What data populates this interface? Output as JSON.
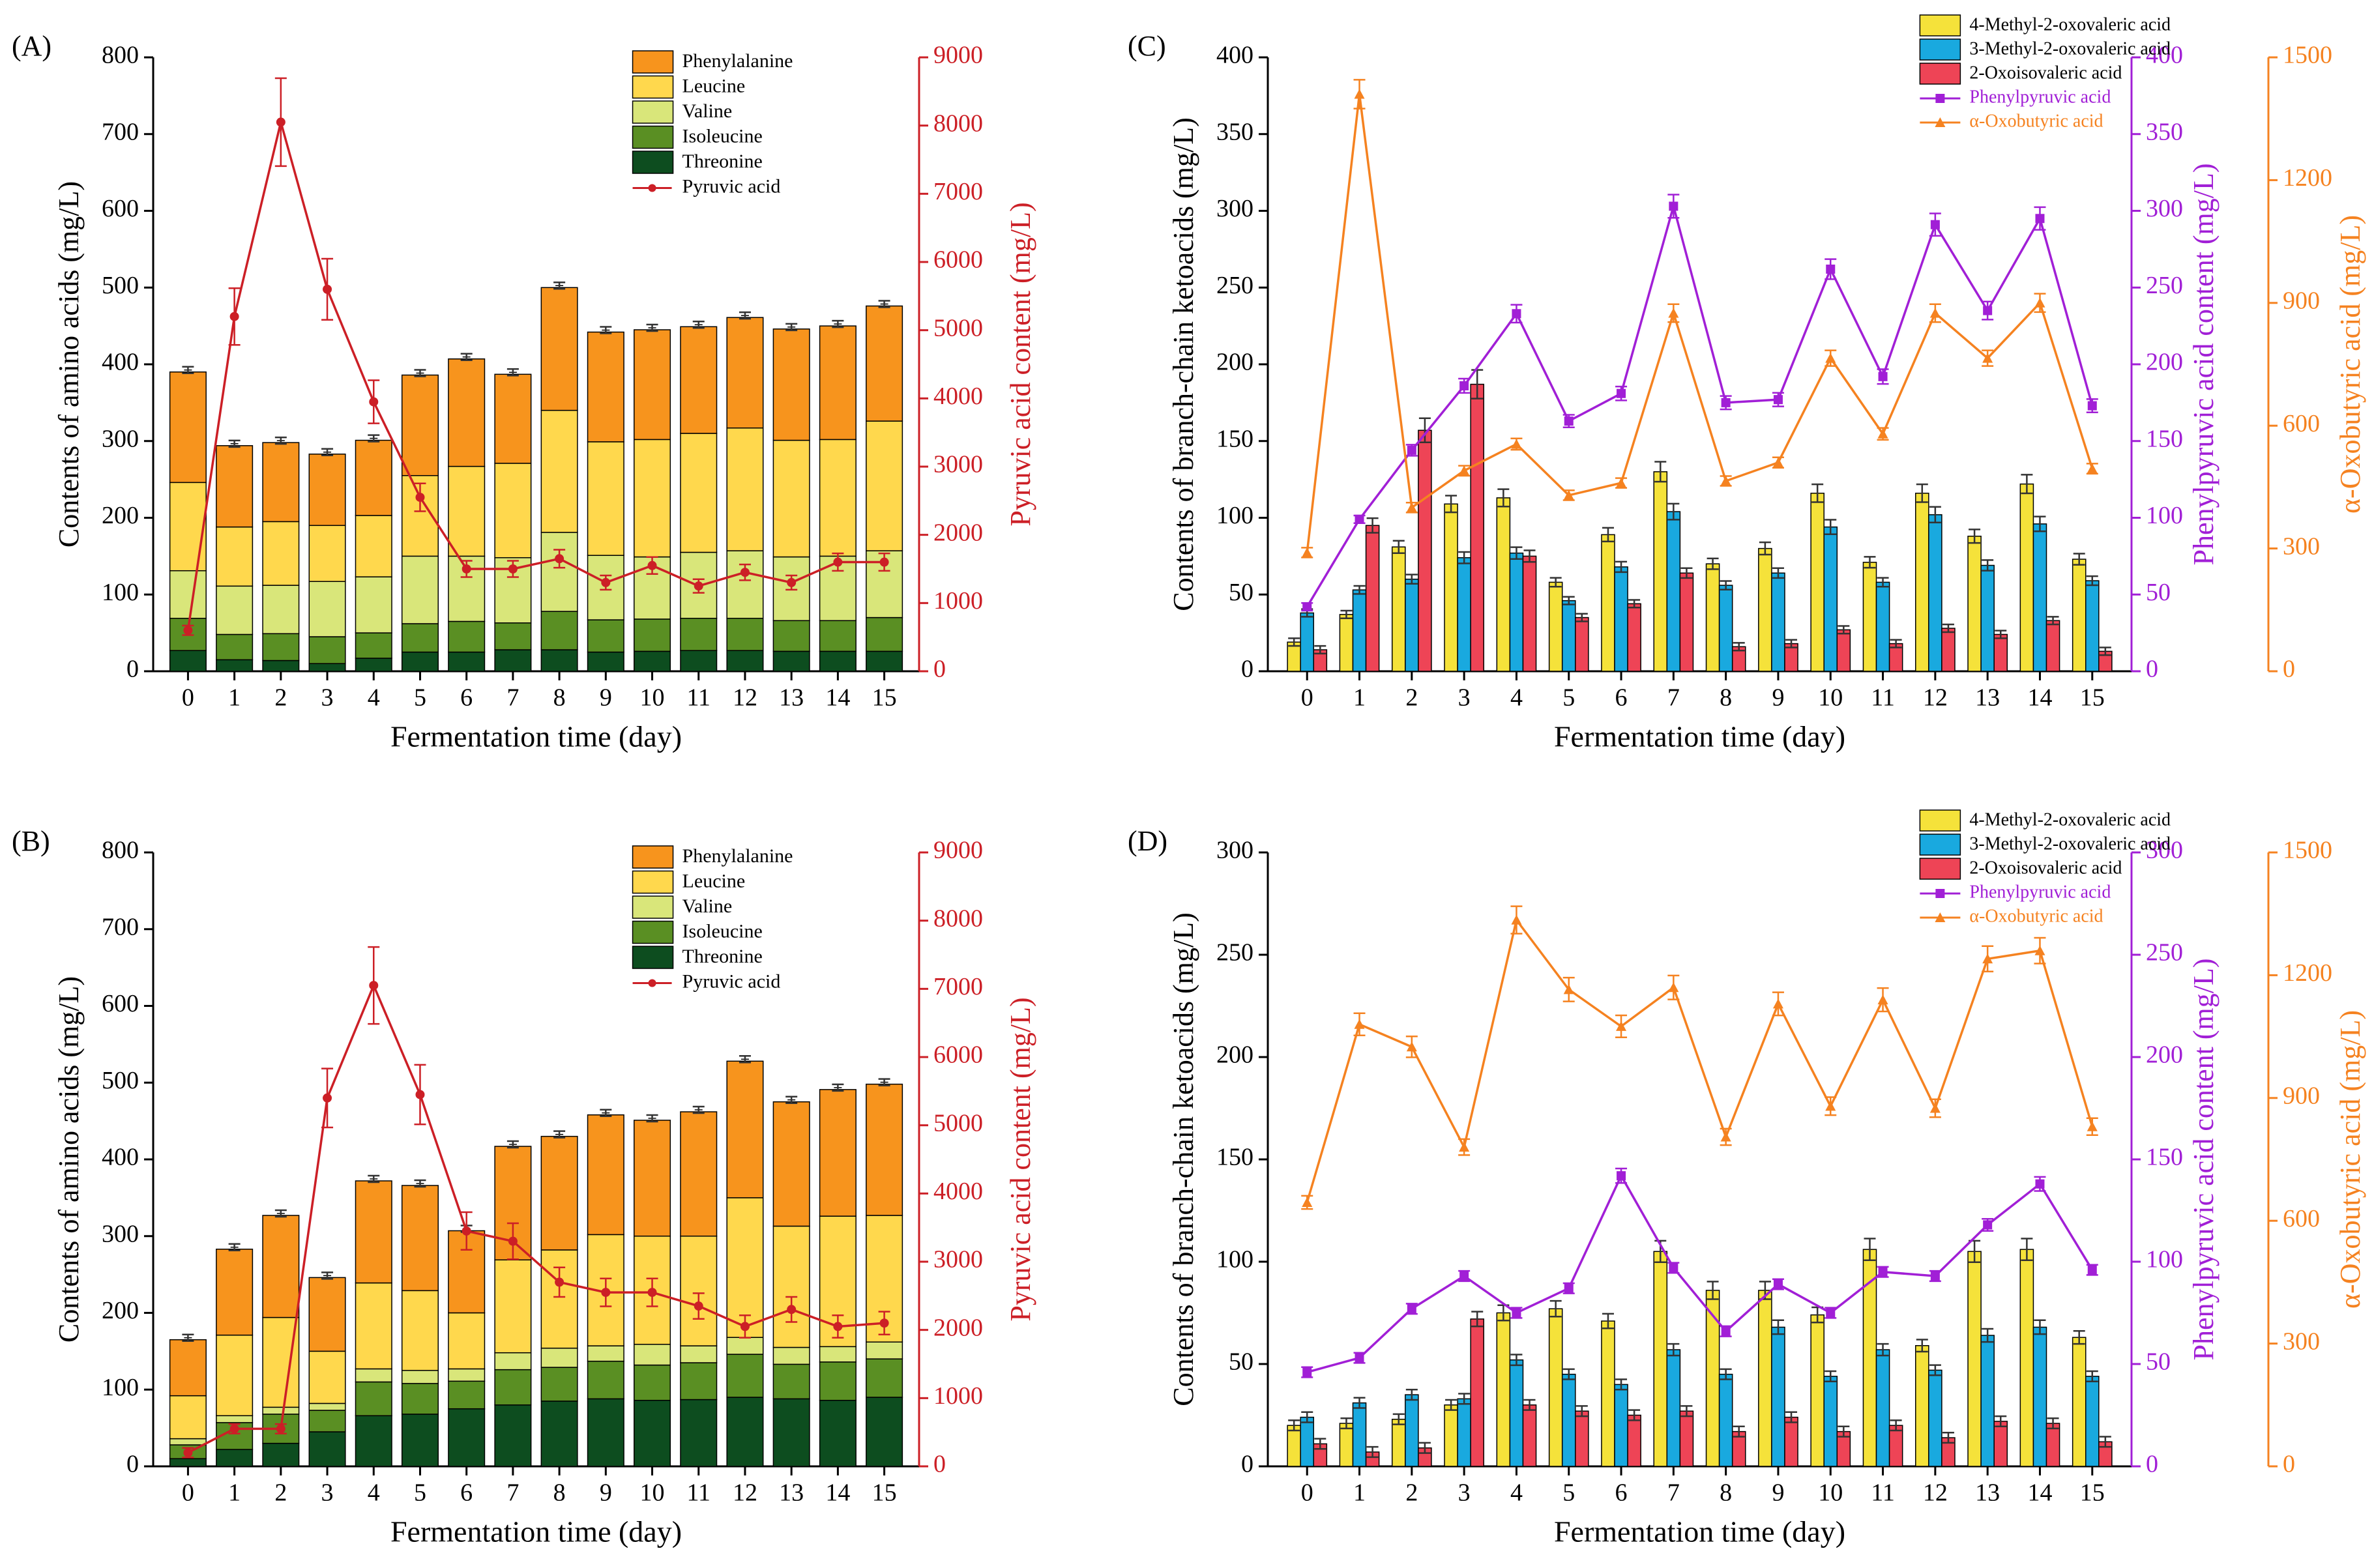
{
  "colors": {
    "phenylalanine": "#f7941d",
    "leucine": "#ffd84d",
    "valine": "#d9e67a",
    "isoleucine": "#5a8f23",
    "threonine": "#0d4d1f",
    "pyruvic": "#cc1f26",
    "methyl4": "#f5e23a",
    "methyl3": "#19a9df",
    "oxoiso": "#ee4456",
    "phenylpyruvic": "#a11fd6",
    "oxobutyric": "#f58220"
  },
  "chart_data": [
    {
      "panel": "(A)",
      "type": "bar",
      "stacked": true,
      "xlabel": "Fermentation time (day)",
      "ylabel": "Contents of amino acids (mg/L)",
      "ylim": [
        0,
        800
      ],
      "yticks": [
        "0",
        "100",
        "200",
        "300",
        "400",
        "500",
        "600",
        "700",
        "800"
      ],
      "y2label": "Pyruvic acid content (mg/L)",
      "y2lim": [
        0,
        9000
      ],
      "y2ticks": [
        "0",
        "1000",
        "2000",
        "3000",
        "4000",
        "5000",
        "6000",
        "7000",
        "8000",
        "9000"
      ],
      "categories": [
        "0",
        "1",
        "2",
        "3",
        "4",
        "5",
        "6",
        "7",
        "8",
        "9",
        "10",
        "11",
        "12",
        "13",
        "14",
        "15"
      ],
      "series": [
        {
          "name": "Threonine",
          "values": [
            27,
            15,
            14,
            10,
            17,
            25,
            25,
            28,
            28,
            25,
            26,
            27,
            27,
            26,
            26,
            26
          ]
        },
        {
          "name": "Isoleucine",
          "values": [
            42,
            33,
            35,
            35,
            33,
            37,
            40,
            35,
            50,
            42,
            42,
            42,
            42,
            40,
            40,
            44
          ]
        },
        {
          "name": "Valine",
          "values": [
            62,
            63,
            63,
            72,
            73,
            88,
            85,
            85,
            103,
            84,
            81,
            86,
            88,
            83,
            84,
            87
          ]
        },
        {
          "name": "Leucine",
          "values": [
            115,
            77,
            83,
            73,
            80,
            105,
            117,
            123,
            159,
            148,
            153,
            155,
            160,
            152,
            152,
            169
          ]
        },
        {
          "name": "Phenylalanine",
          "values": [
            144,
            106,
            103,
            93,
            98,
            131,
            140,
            116,
            160,
            143,
            143,
            139,
            144,
            145,
            148,
            150
          ]
        }
      ],
      "line": {
        "name": "Pyruvic acid",
        "axis": "right",
        "values": [
          600,
          5200,
          8050,
          5600,
          3950,
          2550,
          1500,
          1500,
          1650,
          1300,
          1550,
          1250,
          1450,
          1300,
          1600,
          1600
        ]
      },
      "legend": [
        "Phenylalanine",
        "Leucine",
        "Valine",
        "Isoleucine",
        "Threonine",
        "Pyruvic acid"
      ]
    },
    {
      "panel": "(B)",
      "type": "bar",
      "stacked": true,
      "xlabel": "Fermentation time (day)",
      "ylabel": "Contents of amino acids (mg/L)",
      "ylim": [
        0,
        800
      ],
      "yticks": [
        "0",
        "100",
        "200",
        "300",
        "400",
        "500",
        "600",
        "700",
        "800"
      ],
      "y2label": "Pyruvic acid content (mg/L)",
      "y2lim": [
        0,
        9000
      ],
      "y2ticks": [
        "0",
        "1000",
        "2000",
        "3000",
        "4000",
        "5000",
        "6000",
        "7000",
        "8000",
        "9000"
      ],
      "categories": [
        "0",
        "1",
        "2",
        "3",
        "4",
        "5",
        "6",
        "7",
        "8",
        "9",
        "10",
        "11",
        "12",
        "13",
        "14",
        "15"
      ],
      "series": [
        {
          "name": "Threonine",
          "values": [
            10,
            22,
            30,
            45,
            66,
            68,
            75,
            80,
            85,
            88,
            86,
            87,
            90,
            88,
            86,
            90
          ]
        },
        {
          "name": "Isoleucine",
          "values": [
            18,
            35,
            38,
            28,
            44,
            40,
            36,
            46,
            44,
            49,
            46,
            48,
            56,
            45,
            50,
            50
          ]
        },
        {
          "name": "Valine",
          "values": [
            8,
            9,
            9,
            9,
            17,
            17,
            16,
            22,
            25,
            20,
            27,
            22,
            22,
            22,
            20,
            22
          ]
        },
        {
          "name": "Leucine",
          "values": [
            56,
            105,
            117,
            68,
            112,
            104,
            73,
            121,
            128,
            145,
            141,
            143,
            182,
            158,
            170,
            165
          ]
        },
        {
          "name": "Phenylalanine",
          "values": [
            73,
            112,
            133,
            96,
            133,
            137,
            107,
            148,
            148,
            156,
            151,
            162,
            178,
            162,
            165,
            171
          ]
        }
      ],
      "line": {
        "name": "Pyruvic acid",
        "axis": "right",
        "values": [
          200,
          550,
          550,
          5400,
          7050,
          5450,
          3450,
          3300,
          2700,
          2550,
          2550,
          2350,
          2050,
          2300,
          2050,
          2100
        ]
      },
      "legend": [
        "Phenylalanine",
        "Leucine",
        "Valine",
        "Isoleucine",
        "Threonine",
        "Pyruvic acid"
      ]
    },
    {
      "panel": "(C)",
      "type": "bar",
      "stacked": false,
      "xlabel": "Fermentation time (day)",
      "ylabel": "Contents of branch-chain ketoacids (mg/L)",
      "ylim": [
        0,
        400
      ],
      "yticks": [
        "0",
        "50",
        "100",
        "150",
        "200",
        "250",
        "300",
        "350",
        "400"
      ],
      "y2label": "Phenylpyruvic acid content (mg/L)",
      "y2lim": [
        0,
        400
      ],
      "y2ticks": [
        "0",
        "50",
        "100",
        "150",
        "200",
        "250",
        "300",
        "350",
        "400"
      ],
      "y3label": "α-Oxobutyric acid (mg/L)",
      "y3lim": [
        0,
        1500
      ],
      "y3ticks": [
        "0",
        "300",
        "600",
        "900",
        "1200",
        "1500"
      ],
      "categories": [
        "0",
        "1",
        "2",
        "3",
        "4",
        "5",
        "6",
        "7",
        "8",
        "9",
        "10",
        "11",
        "12",
        "13",
        "14",
        "15"
      ],
      "series": [
        {
          "name": "4-Methyl-2-oxovaleric acid",
          "values": [
            19,
            37,
            81,
            109,
            113,
            58,
            89,
            130,
            70,
            80,
            116,
            71,
            116,
            88,
            122,
            73
          ]
        },
        {
          "name": "3-Methyl-2-oxovaleric acid",
          "values": [
            38,
            53,
            60,
            74,
            77,
            46,
            68,
            104,
            56,
            64,
            94,
            58,
            102,
            69,
            96,
            59
          ]
        },
        {
          "name": "2-Oxoisovaleric acid",
          "values": [
            14,
            95,
            157,
            187,
            75,
            35,
            44,
            64,
            16,
            18,
            27,
            18,
            28,
            24,
            33,
            13
          ]
        }
      ],
      "lines": [
        {
          "name": "Phenylpyruvic acid",
          "axis": "right1",
          "values": [
            42,
            99,
            144,
            186,
            233,
            163,
            181,
            303,
            175,
            177,
            262,
            192,
            291,
            235,
            295,
            173
          ]
        },
        {
          "name": "α-Oxobutyric acid",
          "axis": "right2",
          "values": [
            290,
            1410,
            400,
            490,
            555,
            430,
            460,
            875,
            465,
            510,
            765,
            580,
            875,
            765,
            900,
            495
          ]
        }
      ],
      "legend": [
        "4-Methyl-2-oxovaleric acid",
        "3-Methyl-2-oxovaleric acid",
        "2-Oxoisovaleric acid",
        "Phenylpyruvic acid",
        "α-Oxobutyric acid"
      ]
    },
    {
      "panel": "(D)",
      "type": "bar",
      "stacked": false,
      "xlabel": "Fermentation time (day)",
      "ylabel": "Contents of branch-chain ketoacids (mg/L)",
      "ylim": [
        0,
        300
      ],
      "yticks": [
        "0",
        "50",
        "100",
        "150",
        "200",
        "250",
        "300"
      ],
      "y2label": "Phenylpyruvic acid content (mg/L)",
      "y2lim": [
        0,
        300
      ],
      "y2ticks": [
        "0",
        "50",
        "100",
        "150",
        "200",
        "250",
        "300"
      ],
      "y3label": "α-Oxobutyric acid (mg/L)",
      "y3lim": [
        0,
        1500
      ],
      "y3ticks": [
        "0",
        "300",
        "600",
        "900",
        "1200",
        "1500"
      ],
      "categories": [
        "0",
        "1",
        "2",
        "3",
        "4",
        "5",
        "6",
        "7",
        "8",
        "9",
        "10",
        "11",
        "12",
        "13",
        "14",
        "15"
      ],
      "series": [
        {
          "name": "4-Methyl-2-oxovaleric acid",
          "values": [
            20,
            21,
            23,
            30,
            75,
            77,
            71,
            105,
            86,
            86,
            74,
            106,
            59,
            105,
            106,
            63
          ]
        },
        {
          "name": "3-Methyl-2-oxovaleric acid",
          "values": [
            24,
            31,
            35,
            33,
            52,
            45,
            40,
            57,
            45,
            68,
            44,
            57,
            47,
            64,
            68,
            44
          ]
        },
        {
          "name": "2-Oxoisovaleric acid",
          "values": [
            11,
            7,
            9,
            72,
            30,
            27,
            25,
            27,
            17,
            24,
            17,
            20,
            14,
            22,
            21,
            12
          ]
        }
      ],
      "lines": [
        {
          "name": "Phenylpyruvic acid",
          "axis": "right1",
          "values": [
            46,
            53,
            77,
            93,
            75,
            87,
            142,
            97,
            66,
            89,
            75,
            95,
            93,
            118,
            138,
            96
          ]
        },
        {
          "name": "α-Oxobutyric acid",
          "axis": "right2",
          "values": [
            645,
            1080,
            1025,
            780,
            1335,
            1165,
            1075,
            1170,
            805,
            1130,
            880,
            1140,
            875,
            1240,
            1260,
            830
          ]
        }
      ],
      "legend": [
        "4-Methyl-2-oxovaleric acid",
        "3-Methyl-2-oxovaleric acid",
        "2-Oxoisovaleric acid",
        "Phenylpyruvic acid",
        "α-Oxobutyric acid"
      ]
    }
  ]
}
